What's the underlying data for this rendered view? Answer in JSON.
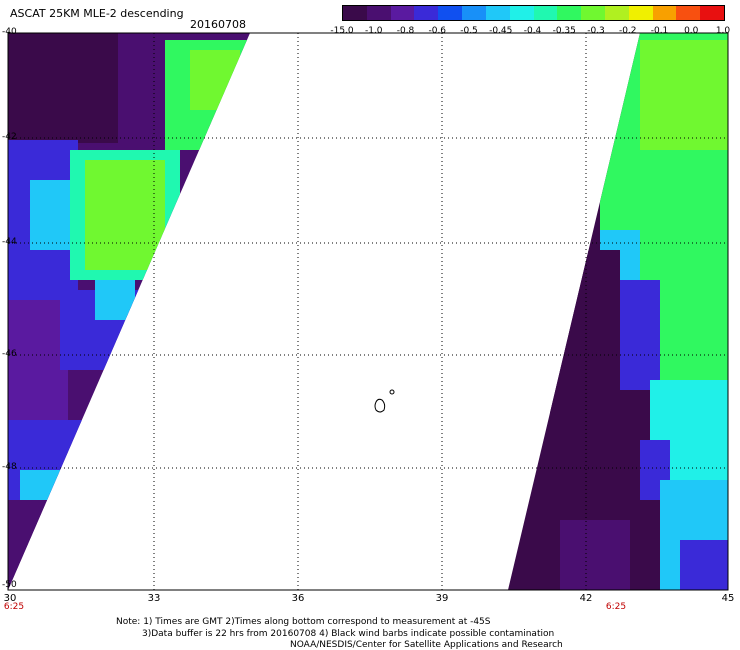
{
  "header": {
    "title": "ASCAT 25KM MLE-2 descending",
    "date": "20160708"
  },
  "colorbar": {
    "colors": [
      "#3a0a4a",
      "#4a0f70",
      "#5a1aa0",
      "#3a2ad8",
      "#1050f0",
      "#1890f8",
      "#20c8f8",
      "#20f0e8",
      "#20f8b0",
      "#30f860",
      "#70f830",
      "#b0f020",
      "#f0f000",
      "#f8a000",
      "#f85010",
      "#e81010"
    ],
    "labels": [
      "-15.0",
      "-1.0",
      "-0.8",
      "-0.6",
      "-0.5",
      "-0.45",
      "-0.4",
      "-0.35",
      "-0.3",
      "-0.2",
      "-0.1",
      "0.0",
      "1.0"
    ]
  },
  "axes": {
    "x_ticks": [
      "30",
      "33",
      "36",
      "39",
      "42",
      "45"
    ],
    "y_ticks": [
      "-40",
      "-42",
      "-44",
      "-46",
      "-48",
      "-50"
    ],
    "left_time": "6:25",
    "right_time": "6:25"
  },
  "notes": {
    "line1": "Note: 1) Times are GMT 2)Times along bottom correspond to measurement at -45S",
    "line2": "3)Data buffer is 22 hrs from 20160708 4) Black wind barbs indicate possible contamination",
    "line3": "NOAA/NESDIS/Center for Satellite Applications and Research"
  }
}
